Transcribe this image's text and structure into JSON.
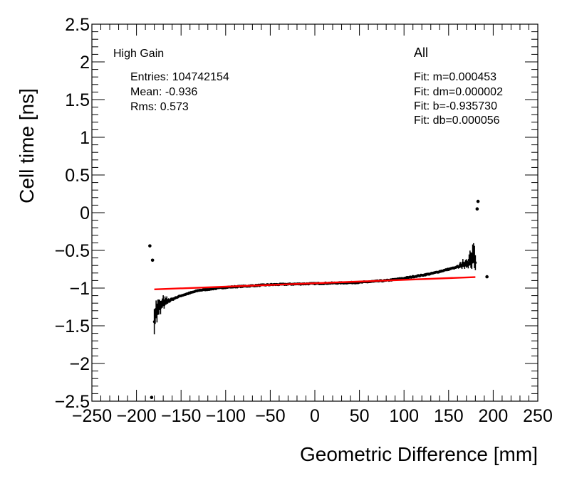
{
  "chart_data": {
    "type": "scatter",
    "title": "",
    "xlabel": "Geometric Difference [mm]",
    "ylabel": "Cell time [ns]",
    "xlim": [
      -250,
      250
    ],
    "ylim": [
      -2.5,
      2.5
    ],
    "x_ticks": [
      -250,
      -200,
      -150,
      -100,
      -50,
      0,
      50,
      100,
      150,
      200,
      250
    ],
    "x_tick_labels": [
      "−250",
      "−200",
      "−150",
      "−100",
      "−50",
      "0",
      "50",
      "100",
      "150",
      "200",
      "250"
    ],
    "y_ticks": [
      -2.5,
      -2,
      -1.5,
      -1,
      -0.5,
      0,
      0.5,
      1,
      1.5,
      2,
      2.5
    ],
    "y_tick_labels": [
      "−2.5",
      "−2",
      "−1.5",
      "−1",
      "−0.5",
      "0",
      "0.5",
      "1",
      "1.5",
      "2",
      "2.5"
    ],
    "grid": false,
    "annotations": {
      "gain": "High Gain",
      "entries": "Entries: 104742154",
      "mean": "Mean: -0.936",
      "rms": "Rms: 0.573",
      "selection": "All",
      "fit_m": "Fit: m=0.000453",
      "fit_dm": "Fit: dm=0.000002",
      "fit_b": "Fit: b=-0.935730",
      "fit_db": "Fit: db=0.000056"
    },
    "fit_line": {
      "m": 0.000453,
      "b": -0.93573,
      "x_range": [
        -180,
        180
      ],
      "color": "#ff0000"
    },
    "outliers": [
      {
        "x": -185,
        "y": -0.44
      },
      {
        "x": -182,
        "y": -0.63
      },
      {
        "x": -183,
        "y": -2.45
      },
      {
        "x": 183,
        "y": 0.15
      },
      {
        "x": 182,
        "y": 0.05
      },
      {
        "x": 193,
        "y": -0.85
      }
    ],
    "profile_knots": [
      {
        "x": -180,
        "y": -1.35
      },
      {
        "x": -170,
        "y": -1.2
      },
      {
        "x": -150,
        "y": -1.1
      },
      {
        "x": -130,
        "y": -1.03
      },
      {
        "x": -100,
        "y": -0.99
      },
      {
        "x": -50,
        "y": -0.955
      },
      {
        "x": 0,
        "y": -0.94
      },
      {
        "x": 50,
        "y": -0.925
      },
      {
        "x": 80,
        "y": -0.9
      },
      {
        "x": 100,
        "y": -0.87
      },
      {
        "x": 130,
        "y": -0.81
      },
      {
        "x": 160,
        "y": -0.72
      },
      {
        "x": 180,
        "y": -0.6
      }
    ],
    "profile_step": 1,
    "marker_color": "#000000"
  }
}
